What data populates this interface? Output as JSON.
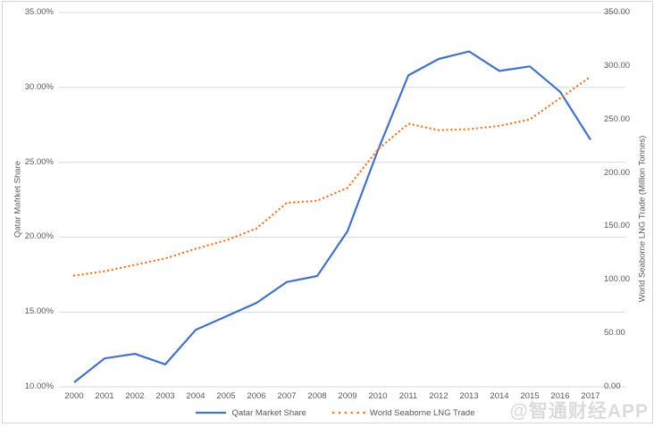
{
  "watermark": "@智通财经APP",
  "chart_data": {
    "type": "line",
    "x": [
      2000,
      2001,
      2002,
      2003,
      2004,
      2005,
      2006,
      2007,
      2008,
      2009,
      2010,
      2011,
      2012,
      2013,
      2014,
      2015,
      2016,
      2017
    ],
    "x_labels": [
      "2000",
      "2001",
      "2002",
      "2003",
      "2004",
      "2005",
      "2006",
      "2007",
      "2008",
      "2009",
      "2010",
      "2011",
      "2012",
      "2013",
      "2014",
      "2015",
      "2016",
      "2017"
    ],
    "series": [
      {
        "name": "Qatar Market Share",
        "axis": "left",
        "color": "#4472C4",
        "style": "solid",
        "values": [
          10.3,
          11.9,
          12.2,
          11.5,
          13.8,
          14.7,
          15.6,
          17.0,
          17.4,
          20.4,
          25.8,
          30.8,
          31.9,
          32.4,
          31.1,
          31.4,
          29.7,
          26.5
        ]
      },
      {
        "name": "World Seaborne LNG Trade",
        "axis": "right",
        "color": "#ED7D31",
        "style": "dotted",
        "values": [
          104,
          108,
          114,
          120,
          129,
          137,
          148,
          172,
          174,
          186,
          222,
          246,
          240,
          241,
          244,
          250,
          270,
          290
        ]
      }
    ],
    "left_axis": {
      "title": "Qatar Mafrket Share",
      "min": 10,
      "max": 35,
      "ticks": [
        "10.00%",
        "15.00%",
        "20.00%",
        "25.00%",
        "30.00%",
        "35.00%"
      ]
    },
    "right_axis": {
      "title": "World Seaborne LNG Trade (Million Tonnes)",
      "min": 0,
      "max": 350,
      "ticks": [
        "0.00",
        "50.00",
        "100.00",
        "150.00",
        "200.00",
        "250.00",
        "300.00",
        "350.00"
      ]
    },
    "grid": true,
    "legend_position": "bottom",
    "gridline_color": "#D9D9D9",
    "text_color": "#595959"
  }
}
